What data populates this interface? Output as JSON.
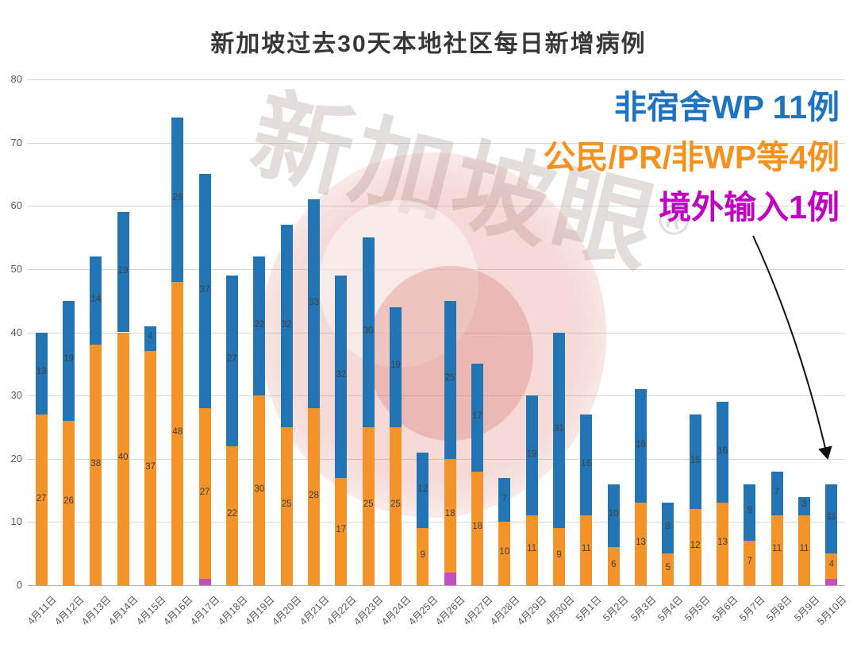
{
  "title": "新加坡过去30天本地社区每日新增病例",
  "watermark": {
    "text": "新加坡眼",
    "reg": "®"
  },
  "annotations": [
    {
      "text": "非宿舍WP 11例",
      "color": "#1E73BE"
    },
    {
      "text": "公民/PR/非WP等4例",
      "color": "#F5921E"
    },
    {
      "text": "境外输入1例",
      "color": "#C000C0"
    }
  ],
  "style": {
    "background": "#FFFFFF",
    "grid_color": "#D9D9D9",
    "axis_text_color": "#595959",
    "value_label_color": "#404040",
    "title_color": "#383838",
    "arrow_color": "#111111"
  },
  "chart_data": {
    "type": "bar",
    "stacked": true,
    "title": "新加坡过去30天本地社区每日新增病例",
    "xlabel": "",
    "ylabel": "",
    "ylim": [
      0,
      80
    ],
    "yticks": [
      0,
      10,
      20,
      30,
      40,
      50,
      60,
      70,
      80
    ],
    "grid": true,
    "legend_position": "top-right-annotation",
    "categories": [
      "4月11日",
      "4月12日",
      "4月13日",
      "4月14日",
      "4月15日",
      "4月16日",
      "4月17日",
      "4月18日",
      "4月19日",
      "4月20日",
      "4月21日",
      "4月22日",
      "4月23日",
      "4月24日",
      "4月25日",
      "4月26日",
      "4月27日",
      "4月28日",
      "4月29日",
      "4月30日",
      "5月1日",
      "5月2日",
      "5月3日",
      "5月4日",
      "5月5日",
      "5月6日",
      "5月7日",
      "5月8日",
      "5月9日",
      "5月10日"
    ],
    "series": [
      {
        "name": "境外输入",
        "color": "#C24EC2",
        "show_labels": false,
        "values": [
          0,
          0,
          0,
          0,
          0,
          0,
          1,
          0,
          0,
          0,
          0,
          0,
          0,
          0,
          0,
          2,
          0,
          0,
          0,
          0,
          0,
          0,
          0,
          0,
          0,
          0,
          0,
          0,
          0,
          1
        ]
      },
      {
        "name": "公民/PR/非WP等",
        "color": "#F5932B",
        "show_labels": true,
        "values": [
          27,
          26,
          38,
          40,
          37,
          48,
          27,
          22,
          30,
          25,
          28,
          17,
          25,
          25,
          9,
          18,
          18,
          10,
          11,
          9,
          11,
          6,
          13,
          5,
          12,
          13,
          7,
          11,
          11,
          4
        ]
      },
      {
        "name": "非宿舍WP",
        "color": "#2274B5",
        "show_labels": true,
        "values": [
          13,
          19,
          14,
          19,
          4,
          26,
          37,
          27,
          22,
          32,
          33,
          32,
          30,
          19,
          12,
          25,
          17,
          7,
          19,
          31,
          16,
          10,
          18,
          8,
          15,
          16,
          9,
          7,
          3,
          11
        ]
      }
    ]
  }
}
